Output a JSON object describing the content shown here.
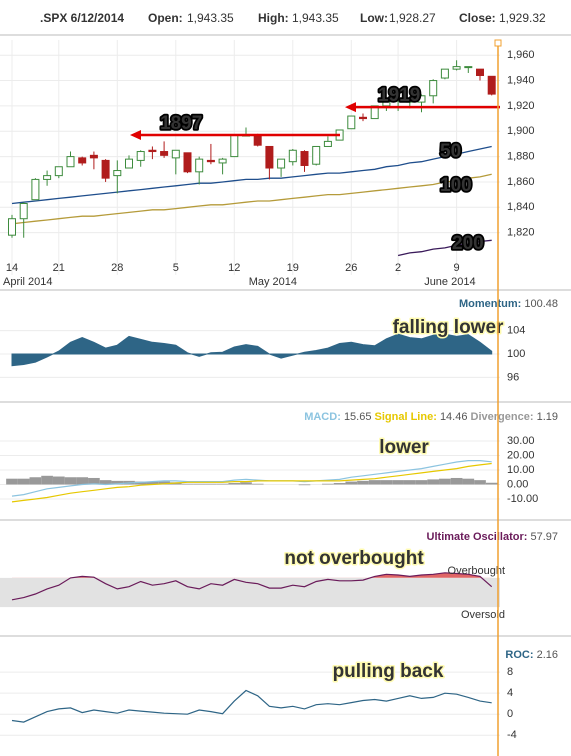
{
  "header": {
    "symbol": ".SPX 6/12/2014",
    "fields": [
      {
        "label": "Open:",
        "value": "1,943.35"
      },
      {
        "label": "High:",
        "value": "1,943.35"
      },
      {
        "label": "Low:",
        "value": "1,928.27"
      },
      {
        "label": "Close:",
        "value": "1,929.32"
      }
    ]
  },
  "chart_data": [
    {
      "type": "candlestick",
      "categories": [
        "14",
        null,
        null,
        null,
        "21",
        null,
        null,
        null,
        null,
        "28",
        null,
        null,
        null,
        null,
        "5",
        null,
        null,
        null,
        null,
        "12",
        null,
        null,
        null,
        null,
        "19",
        null,
        null,
        null,
        null,
        "26",
        null,
        null,
        null,
        "2",
        null,
        null,
        null,
        null,
        "9",
        null,
        null,
        null
      ],
      "x_group_labels": [
        {
          "value": 0,
          "label": "April 2014"
        },
        {
          "value": 21,
          "label": "May 2014"
        },
        {
          "value": 36,
          "label": "June 2014"
        }
      ],
      "open": [
        1818,
        1831,
        1846,
        1862,
        1865,
        1872,
        1879,
        1881,
        1877,
        1865,
        1871,
        1877,
        1885,
        1884,
        1879,
        1883,
        1868,
        1877,
        1875,
        1880,
        1897,
        1897,
        1888,
        1871,
        1876,
        1884,
        1874,
        1888,
        1893,
        1902,
        1911,
        1910,
        1920,
        1924,
        1923,
        1923,
        1928,
        1942,
        1949,
        1951,
        1949,
        1943.35
      ],
      "high": [
        1834,
        1844,
        1863,
        1869,
        1872,
        1884,
        1880,
        1884,
        1878,
        1877,
        1881,
        1885,
        1888,
        1892,
        1885,
        1883,
        1880,
        1890,
        1879,
        1897,
        1903,
        1898,
        1888,
        1878,
        1886,
        1885,
        1888,
        1896,
        1901,
        1912,
        1914,
        1920,
        1924,
        1925,
        1925,
        1929,
        1941,
        1949,
        1956,
        1951,
        1949,
        1943.35
      ],
      "low": [
        1816,
        1816,
        1846,
        1857,
        1863,
        1872,
        1873,
        1870,
        1860,
        1851,
        1871,
        1872,
        1878,
        1879,
        1866,
        1867,
        1858,
        1874,
        1866,
        1880,
        1896,
        1888,
        1862,
        1864,
        1873,
        1868,
        1873,
        1888,
        1893,
        1902,
        1908,
        1910,
        1916,
        1916,
        1918,
        1915,
        1922,
        1941,
        1948,
        1946,
        1940,
        1928.27
      ],
      "close": [
        1831,
        1843,
        1862,
        1865,
        1872,
        1880,
        1875,
        1879,
        1863,
        1869,
        1878,
        1884,
        1884,
        1881,
        1885,
        1868,
        1878,
        1876,
        1878,
        1897,
        1897,
        1889,
        1871,
        1878,
        1885,
        1873,
        1888,
        1892,
        1901,
        1912,
        1910,
        1920,
        1924,
        1925,
        1924,
        1928,
        1940,
        1949,
        1951,
        1951,
        1944,
        1929.32
      ],
      "up_color": "#3d8b3d",
      "down_color": "#b01c1c",
      "series": [
        {
          "name": "50",
          "color": "#1f4e8c",
          "values": [
            1843,
            1844,
            1845,
            1846,
            1847,
            1848,
            1849,
            1850,
            1851,
            1852,
            1853,
            1854,
            1855,
            1856,
            1857,
            1858,
            1859,
            1859,
            1860,
            1861,
            1862,
            1862,
            1863,
            1863,
            1864,
            1865,
            1866,
            1867,
            1867,
            1868,
            1869,
            1870,
            1872,
            1873,
            1875,
            1876,
            1878,
            1880,
            1882,
            1884,
            1886,
            1888
          ]
        },
        {
          "name": "100",
          "color": "#b59b3a",
          "values": [
            1827,
            1828,
            1829,
            1830,
            1831,
            1832,
            1833,
            1833,
            1834,
            1835,
            1836,
            1837,
            1838,
            1838,
            1839,
            1840,
            1841,
            1842,
            1842,
            1843,
            1844,
            1845,
            1845,
            1846,
            1847,
            1848,
            1849,
            1850,
            1850,
            1851,
            1852,
            1853,
            1854,
            1855,
            1856,
            1857,
            1858,
            1860,
            1861,
            1863,
            1864,
            1866
          ]
        },
        {
          "name": "200",
          "color": "#3a1a5a",
          "values": [
            null,
            null,
            null,
            null,
            null,
            null,
            null,
            null,
            null,
            null,
            null,
            null,
            null,
            null,
            null,
            null,
            null,
            null,
            null,
            null,
            null,
            null,
            null,
            null,
            null,
            null,
            null,
            null,
            null,
            null,
            null,
            null,
            null,
            1802,
            1804,
            1805,
            1807,
            1808,
            1810,
            1811,
            1813,
            1814
          ]
        }
      ],
      "reference_lines": [
        1897,
        1919
      ],
      "reference_color": "#e00000",
      "ylim": [
        1800,
        1972
      ],
      "yticks": [
        {
          "value": 1820,
          "label": "1,820"
        },
        {
          "value": 1840,
          "label": "1,840"
        },
        {
          "value": 1860,
          "label": "1,860"
        },
        {
          "value": 1880,
          "label": "1,880"
        },
        {
          "value": 1900,
          "label": "1,900"
        },
        {
          "value": 1920,
          "label": "1,920"
        },
        {
          "value": 1940,
          "label": "1,940"
        },
        {
          "value": 1960,
          "label": "1,960"
        }
      ],
      "grid": true
    },
    {
      "type": "area",
      "title": "Momentum:",
      "color": "#2e6586",
      "baseline": 100,
      "values": [
        98,
        98.2,
        98.6,
        99.5,
        100.5,
        102,
        102.8,
        102,
        101,
        101.5,
        103,
        102.5,
        102,
        101.8,
        101.5,
        100.2,
        99.6,
        100.2,
        100.3,
        101.2,
        101.6,
        101.3,
        100,
        99.3,
        99.8,
        100.3,
        100.6,
        101,
        101.8,
        102,
        101.6,
        101.4,
        102.6,
        103.4,
        102.8,
        102.6,
        103.2,
        103.4,
        103,
        103.3,
        102,
        100.48
      ],
      "ylim": [
        93,
        107
      ],
      "yticks": [
        96,
        100,
        104
      ],
      "grid": true,
      "annotation": "falling lower"
    },
    {
      "type": "macd",
      "series": [
        {
          "name": "MACD:",
          "color": "#8cc4e0",
          "style": "line",
          "values": [
            -8,
            -7,
            -5,
            -3,
            -2,
            -1,
            0,
            0.5,
            0,
            0.5,
            1,
            1.5,
            2,
            2.5,
            2.5,
            2,
            2,
            2,
            2,
            3,
            3.5,
            3,
            2.5,
            2.5,
            2.5,
            2,
            2.5,
            3,
            3.5,
            5,
            6,
            7,
            8,
            9,
            10,
            11,
            12.5,
            14,
            15.5,
            16.5,
            16.5,
            15.65
          ]
        },
        {
          "name": "Signal Line:",
          "color": "#e6c800",
          "style": "line",
          "values": [
            -12,
            -11,
            -10,
            -9,
            -7.5,
            -6,
            -5,
            -4,
            -3,
            -2,
            -1.5,
            -0.5,
            0,
            0.5,
            1,
            1.5,
            1.5,
            1.5,
            1.5,
            2,
            2,
            2.5,
            2.5,
            2.5,
            2.5,
            2.5,
            2.5,
            2.5,
            2.5,
            3,
            3.5,
            4,
            5,
            6,
            7,
            8,
            9,
            10,
            11,
            12.5,
            13.5,
            14.46
          ]
        },
        {
          "name": "Divergence:",
          "color": "#999999",
          "style": "bar",
          "values": [
            4,
            4,
            5,
            6,
            5.5,
            5,
            5,
            4.5,
            3,
            2.5,
            2.5,
            2,
            2,
            2,
            1.5,
            0.5,
            0.5,
            0.5,
            0.5,
            1,
            1.5,
            0.5,
            0,
            0,
            0,
            -0.5,
            0,
            0.5,
            1,
            2,
            2.5,
            3,
            3,
            3,
            3,
            3,
            3.5,
            4,
            4.5,
            4,
            3,
            1.19
          ]
        }
      ],
      "ylim": [
        -19,
        39
      ],
      "yticks": [
        {
          "value": -10,
          "label": "-10.00"
        },
        {
          "value": 0,
          "label": "0.00"
        },
        {
          "value": 10,
          "label": "10.00"
        },
        {
          "value": 20,
          "label": "20.00"
        },
        {
          "value": 30,
          "label": "30.00"
        }
      ],
      "grid": true,
      "annotation": "lower"
    },
    {
      "type": "oscillator",
      "title": "Ultimate Oscillator:",
      "color": "#6a1b5a",
      "overbought_color": "#e06666",
      "band_color": "#e2e2e2",
      "bands": [
        30,
        70
      ],
      "overbought_label": "Overbought",
      "oversold_label": "Oversold",
      "values": [
        40,
        43,
        48,
        55,
        60,
        70,
        72,
        71,
        62,
        55,
        58,
        65,
        60,
        62,
        66,
        58,
        55,
        62,
        60,
        68,
        64,
        62,
        56,
        56,
        60,
        58,
        65,
        68,
        66,
        66,
        67,
        72,
        75,
        74,
        72,
        74,
        75,
        77,
        76,
        75,
        72,
        57.97
      ],
      "ylim": [
        0,
        100
      ],
      "annotation": "not overbought"
    },
    {
      "type": "line",
      "title": "ROC:",
      "color": "#2e6586",
      "values": [
        -1.2,
        -1.5,
        -0.5,
        0.5,
        1,
        1.2,
        0.3,
        0.8,
        0.5,
        0.2,
        0.8,
        0.6,
        0.4,
        0.2,
        0.1,
        0,
        0.8,
        0.5,
        0.1,
        2.5,
        4.5,
        3.5,
        1.5,
        1.2,
        1.5,
        1,
        1.8,
        2,
        1.8,
        2.2,
        2.6,
        2.8,
        2.5,
        3,
        3.5,
        3,
        3.2,
        4,
        3.8,
        3.2,
        2.5,
        2.16
      ],
      "ylim": [
        -6.8,
        10.3
      ],
      "yticks": [
        -4,
        0,
        4,
        8
      ],
      "grid": true,
      "annotation": "pulling back"
    }
  ]
}
